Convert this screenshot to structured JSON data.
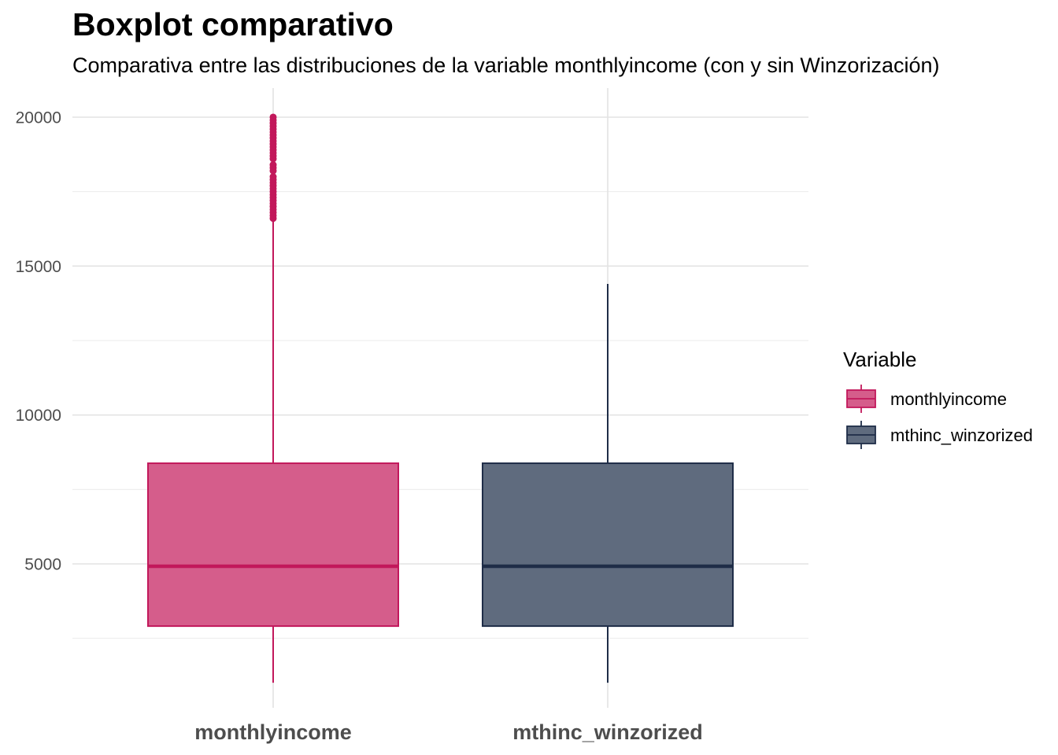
{
  "chart_data": {
    "type": "boxplot",
    "title": "Boxplot comparativo",
    "subtitle": "Comparativa entre las distribuciones de la variable monthlyincome (con y sin Winzorización)",
    "xlabel": "",
    "ylabel": "",
    "ylim": [
      0,
      20900
    ],
    "yticks": [
      5000,
      10000,
      15000,
      20000
    ],
    "y_tick_labels": [
      "5000",
      "10000",
      "15000",
      "20000"
    ],
    "grid": true,
    "legend": {
      "title": "Variable",
      "placement": "right",
      "entries": [
        "monthlyincome",
        "mthinc_winzorized"
      ]
    },
    "categories": [
      "monthlyincome",
      "mthinc_winzorized"
    ],
    "series": [
      {
        "name": "monthlyincome",
        "color": "#c2185b",
        "fill": "#d55d8b",
        "min": 1009,
        "q1": 2911,
        "median": 4919,
        "q3": 8379,
        "whisker_high": 16600,
        "outliers": [
          16600,
          16700,
          16800,
          16900,
          17000,
          17100,
          17200,
          17300,
          17400,
          17500,
          17600,
          17700,
          17800,
          17900,
          18000,
          18200,
          18300,
          18400,
          18600,
          18700,
          18800,
          18900,
          19000,
          19100,
          19200,
          19300,
          19400,
          19500,
          19600,
          19700,
          19800,
          19900,
          20000
        ]
      },
      {
        "name": "mthinc_winzorized",
        "color": "#1f2d48",
        "fill": "#5f6b7e",
        "min": 1009,
        "q1": 2911,
        "median": 4919,
        "q3": 8379,
        "whisker_high": 14400,
        "outliers": []
      }
    ]
  }
}
